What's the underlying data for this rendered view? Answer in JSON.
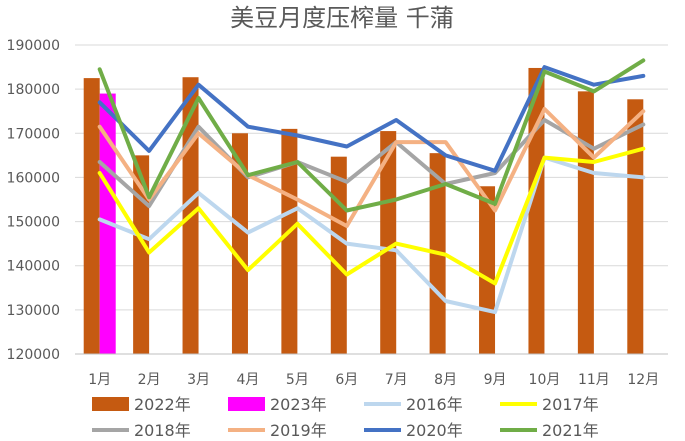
{
  "chart_data": {
    "type": "bar+line",
    "title": "美豆月度压榨量   千蒲",
    "categories": [
      "1月",
      "2月",
      "3月",
      "4月",
      "5月",
      "6月",
      "7月",
      "8月",
      "9月",
      "10月",
      "11月",
      "12月"
    ],
    "ylim": [
      120000,
      190000
    ],
    "yticks": [
      120000,
      130000,
      140000,
      150000,
      160000,
      170000,
      180000,
      190000
    ],
    "grid": true,
    "legend_position": "bottom",
    "bar_series": [
      {
        "name": "2022年",
        "color": "#C55A11",
        "values": [
          182500,
          165000,
          182700,
          170000,
          171000,
          164700,
          170500,
          165500,
          158000,
          184800,
          179500,
          177700
        ]
      },
      {
        "name": "2023年",
        "color": "#FF00FF",
        "values": [
          179000,
          null,
          null,
          null,
          null,
          null,
          null,
          null,
          null,
          null,
          null,
          null
        ]
      }
    ],
    "line_series": [
      {
        "name": "2016年",
        "color": "#BDD7EE",
        "values": [
          150500,
          146000,
          156500,
          147500,
          153000,
          145000,
          143500,
          132000,
          129500,
          164500,
          161000,
          160000
        ]
      },
      {
        "name": "2017年",
        "color": "#FFFF00",
        "values": [
          161000,
          143000,
          153000,
          139000,
          149500,
          138000,
          145000,
          142500,
          136000,
          164500,
          163500,
          166500
        ]
      },
      {
        "name": "2018年",
        "color": "#A5A5A5",
        "values": [
          163500,
          153500,
          171500,
          160000,
          163500,
          159000,
          168000,
          158500,
          161000,
          173000,
          166500,
          172000
        ]
      },
      {
        "name": "2019年",
        "color": "#F4B183",
        "values": [
          171500,
          155000,
          170000,
          160500,
          155000,
          149000,
          168000,
          168000,
          152500,
          175500,
          164500,
          175000
        ]
      },
      {
        "name": "2020年",
        "color": "#4472C4",
        "values": [
          177000,
          166000,
          181000,
          171500,
          169500,
          167000,
          173000,
          165000,
          161500,
          185000,
          181000,
          183000
        ]
      },
      {
        "name": "2021年",
        "color": "#70AD47",
        "values": [
          184500,
          155500,
          178000,
          160500,
          163500,
          152500,
          155000,
          158500,
          154000,
          184000,
          179500,
          186500
        ]
      }
    ]
  }
}
